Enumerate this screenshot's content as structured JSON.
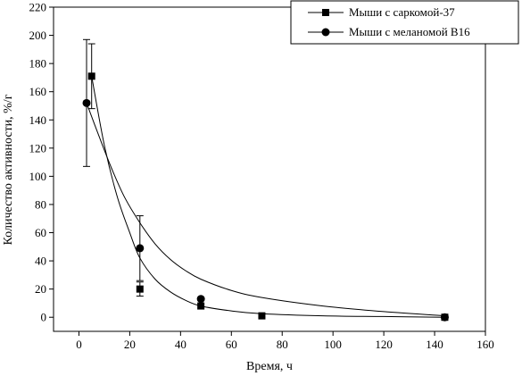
{
  "chart_data": {
    "type": "scatter",
    "xlabel": "Время, ч",
    "ylabel": "Количество активности, %/г",
    "xlim": [
      -10,
      160
    ],
    "ylim": [
      -10,
      220
    ],
    "xticks": [
      0,
      20,
      40,
      60,
      80,
      100,
      120,
      140,
      160
    ],
    "yticks": [
      0,
      20,
      40,
      60,
      80,
      100,
      120,
      140,
      160,
      180,
      200,
      220
    ],
    "grid": false,
    "legend_position": "top-right",
    "series": [
      {
        "name": "Мыши с саркомой-37",
        "marker": "square",
        "color": "#000000",
        "points": [
          {
            "x": 5,
            "y": 171,
            "err": 23
          },
          {
            "x": 24,
            "y": 20,
            "err": 5
          },
          {
            "x": 48,
            "y": 8,
            "err": 0
          },
          {
            "x": 72,
            "y": 1,
            "err": 0
          },
          {
            "x": 144,
            "y": 0,
            "err": 0
          }
        ],
        "fit_curve": [
          [
            5,
            171
          ],
          [
            10,
            122
          ],
          [
            15,
            86
          ],
          [
            20,
            60
          ],
          [
            24,
            42
          ],
          [
            30,
            27
          ],
          [
            36,
            18
          ],
          [
            42,
            12
          ],
          [
            48,
            8
          ],
          [
            60,
            4.5
          ],
          [
            72,
            2.5
          ],
          [
            96,
            1
          ],
          [
            120,
            0.5
          ],
          [
            144,
            0
          ]
        ]
      },
      {
        "name": "Мыши с меланомой B16",
        "marker": "circle",
        "color": "#000000",
        "points": [
          {
            "x": 3,
            "y": 152,
            "err": 45
          },
          {
            "x": 24,
            "y": 49,
            "err": 23
          },
          {
            "x": 48,
            "y": 13,
            "err": 0
          },
          {
            "x": 144,
            "y": 0,
            "err": 0
          }
        ],
        "fit_curve": [
          [
            3,
            152
          ],
          [
            8,
            128
          ],
          [
            13,
            105
          ],
          [
            18,
            85
          ],
          [
            24,
            67
          ],
          [
            30,
            52
          ],
          [
            36,
            41
          ],
          [
            42,
            33
          ],
          [
            48,
            27
          ],
          [
            60,
            19
          ],
          [
            72,
            14
          ],
          [
            96,
            8
          ],
          [
            120,
            4
          ],
          [
            144,
            1
          ]
        ]
      }
    ]
  }
}
